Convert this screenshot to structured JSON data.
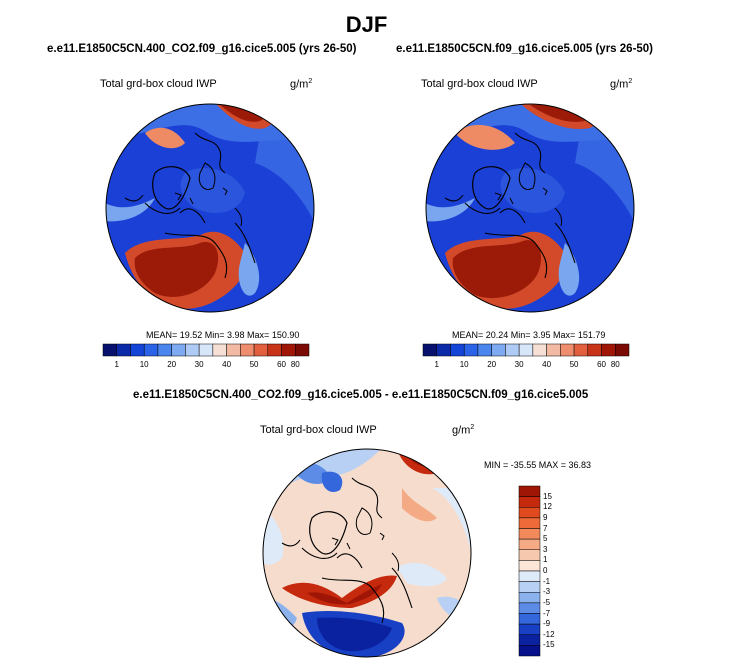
{
  "season": "DJF",
  "panels": [
    {
      "case": "e.e11.E1850C5CN.400_CO2.f09_g16.cice5.005 (yrs 26-50)",
      "variable": "Total grd-box cloud IWP",
      "units_base": "g/m",
      "units_exp": "2",
      "stats": "MEAN=  19.52  Min=   3.98  Max= 150.90"
    },
    {
      "case": "e.e11.E1850C5CN.f09_g16.cice5.005 (yrs 26-50)",
      "variable": "Total grd-box cloud IWP",
      "units_base": "g/m",
      "units_exp": "2",
      "stats": "MEAN=  20.24  Min=   3.95  Max= 151.79"
    },
    {
      "case": "e.e11.E1850C5CN.400_CO2.f09_g16.cice5.005 - e.e11.E1850C5CN.f09_g16.cice5.005",
      "variable": "Total grd-box cloud IWP",
      "units_base": "g/m",
      "units_exp": "2",
      "stats": "MIN = -35.55 MAX =  36.83"
    }
  ],
  "colorbar_abs": {
    "ticks": [
      "1",
      "10",
      "20",
      "30",
      "40",
      "50",
      "60",
      "80"
    ],
    "colors": [
      "#08126e",
      "#0a2aa8",
      "#1244d8",
      "#2a62e8",
      "#4a86ee",
      "#7eaaf2",
      "#aecbf6",
      "#d8e6fa",
      "#f6e0d6",
      "#f2baa2",
      "#ee8e6e",
      "#e2603e",
      "#c83418",
      "#a01606",
      "#7c0a04"
    ]
  },
  "colorbar_diff": {
    "ticks": [
      "15",
      "12",
      "9",
      "7",
      "5",
      "3",
      "1",
      "0",
      "-1",
      "-3",
      "-5",
      "-7",
      "-9",
      "-12",
      "-15"
    ],
    "colors": [
      "#a01606",
      "#c62a0e",
      "#e04a1e",
      "#ee6a38",
      "#f28a5c",
      "#f4aa84",
      "#f6c8ae",
      "#fbe6d8",
      "#dfeaf8",
      "#b8d0f4",
      "#8cb2ee",
      "#5c8ce6",
      "#3466dc",
      "#1840c4",
      "#0a22a0",
      "#06108a"
    ]
  },
  "map_colors": {
    "deep_blue": "#1a40d6",
    "mid_blue": "#3c6ee6",
    "light_blue": "#7aa6f0",
    "red_dark": "#9c1a08",
    "red": "#d24a2a",
    "orange": "#ee8a64",
    "pink": "#f4c2ae",
    "ocean_diff": "#d8e6f8",
    "land_line": "#000000"
  }
}
